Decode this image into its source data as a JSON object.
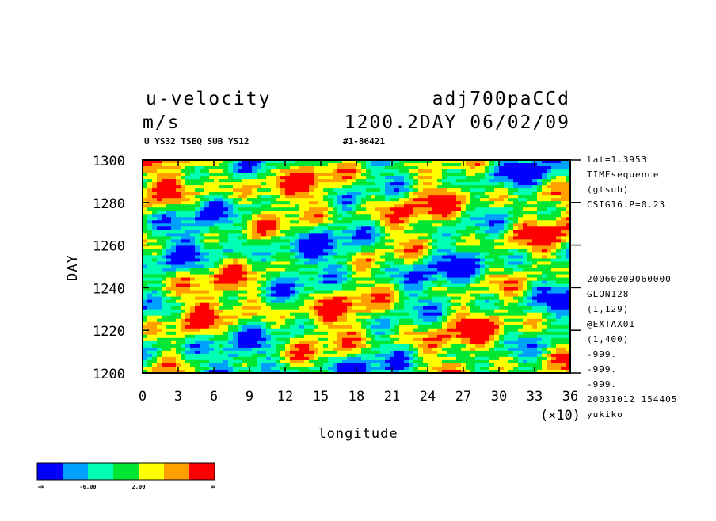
{
  "header": {
    "title_left": "u-velocity",
    "title_right": "adj700paCCd",
    "units": "m/s",
    "time_label": "1200.2DAY 06/02/09",
    "subtitle_left": "U YS32 TSEQ SUB YS12",
    "subtitle_right": "#1-86421"
  },
  "side_info": {
    "top": [
      "lat=1.3953",
      "TIMEsequence",
      "(gtsub)",
      "CSIG16.P=0.23"
    ],
    "bottom": [
      "20060209060000",
      "GLON128",
      "(1,129)",
      "@EXTAX01",
      "(1,400)",
      "-999.",
      "-999.",
      "-999.",
      "20031012 154405",
      "yukiko"
    ]
  },
  "chart_data": {
    "type": "heatmap",
    "xlabel": "longitude",
    "x_multiplier": "(×10)",
    "ylabel": "DAY",
    "xlim": [
      0,
      36
    ],
    "ylim": [
      1200,
      1300
    ],
    "x_ticks": [
      "0",
      "3",
      "6",
      "9",
      "12",
      "15",
      "18",
      "21",
      "24",
      "27",
      "30",
      "33",
      "36"
    ],
    "y_ticks": [
      "1200",
      "1220",
      "1240",
      "1260",
      "1280",
      "1300"
    ],
    "colorbar": {
      "colors": [
        "#0000ff",
        "#00a0ff",
        "#00ffb4",
        "#00e632",
        "#ffff00",
        "#ffa000",
        "#ff0000"
      ],
      "labels": [
        "-∞",
        "-6.00",
        "2.00",
        "∞"
      ]
    }
  }
}
